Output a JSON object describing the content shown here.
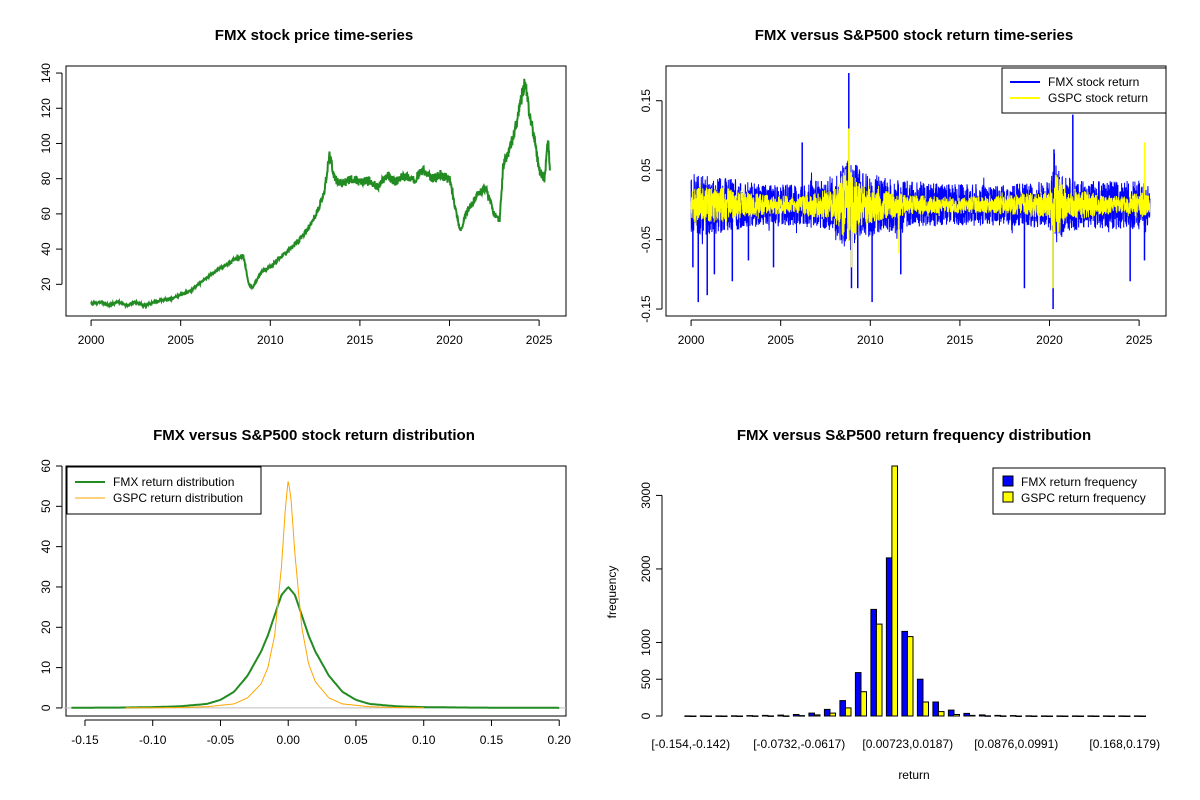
{
  "chart_data": [
    {
      "type": "line",
      "title": "FMX stock price time-series",
      "xlabel": "",
      "ylabel": "",
      "xlim": [
        1998.6,
        2026.5
      ],
      "ylim": [
        2,
        144
      ],
      "x_ticks": [
        2000,
        2005,
        2010,
        2015,
        2020,
        2025
      ],
      "x_tick_labels": [
        "2000",
        "2005",
        "2010",
        "2015",
        "2020",
        "2025"
      ],
      "y_ticks": [
        20,
        40,
        60,
        80,
        100,
        120,
        140
      ],
      "y_tick_labels": [
        "20",
        "40",
        "60",
        "80",
        "100",
        "120",
        "140"
      ],
      "grid": false,
      "colors": {
        "line": "#228B22"
      },
      "series": [
        {
          "x": [
            2000.0,
            2000.5,
            2001.0,
            2001.5,
            2002.0,
            2002.5,
            2003.0,
            2003.5,
            2004.0,
            2004.5,
            2005.0,
            2005.5,
            2006.0,
            2006.5,
            2007.0,
            2007.5,
            2008.0,
            2008.5,
            2008.8,
            2009.0,
            2009.5,
            2010.0,
            2010.5,
            2011.0,
            2011.5,
            2012.0,
            2012.5,
            2013.0,
            2013.3,
            2013.6,
            2014.0,
            2014.5,
            2015.0,
            2015.5,
            2016.0,
            2016.5,
            2017.0,
            2017.5,
            2018.0,
            2018.5,
            2019.0,
            2019.5,
            2020.0,
            2020.3,
            2020.6,
            2021.0,
            2021.5,
            2022.0,
            2022.5,
            2022.8,
            2023.0,
            2023.3,
            2023.6,
            2024.0,
            2024.2,
            2024.5,
            2024.8,
            2025.0,
            2025.3,
            2025.5,
            2025.6
          ],
          "y": [
            9,
            10,
            8,
            10,
            8,
            10,
            8,
            10,
            11,
            12,
            14,
            16,
            20,
            24,
            28,
            31,
            34,
            36,
            20,
            18,
            27,
            30,
            35,
            39,
            44,
            50,
            58,
            72,
            93,
            80,
            77,
            80,
            78,
            79,
            75,
            82,
            78,
            82,
            79,
            85,
            80,
            82,
            80,
            65,
            50,
            62,
            70,
            75,
            60,
            56,
            88,
            95,
            105,
            125,
            135,
            115,
            100,
            85,
            80,
            103,
            85
          ]
        }
      ]
    },
    {
      "type": "line",
      "title": "FMX versus S&P500 stock return time-series",
      "xlabel": "",
      "ylabel": "",
      "xlim": [
        1998.6,
        2026.5
      ],
      "ylim": [
        -0.16,
        0.2
      ],
      "x_ticks": [
        2000,
        2005,
        2010,
        2015,
        2020,
        2025
      ],
      "x_tick_labels": [
        "2000",
        "2005",
        "2010",
        "2015",
        "2020",
        "2025"
      ],
      "y_ticks": [
        -0.15,
        -0.05,
        0.05,
        0.15
      ],
      "y_tick_labels": [
        "-0.15",
        "-0.05",
        "0.05",
        "0.15"
      ],
      "grid": false,
      "legend": {
        "position": "top-right",
        "entries": [
          "FMX stock return",
          "GSPC stock return"
        ]
      },
      "series": [
        {
          "name": "FMX stock return",
          "color": "#0000FF",
          "band_x": [
            2000,
            2002,
            2004,
            2006,
            2008,
            2008.8,
            2009.5,
            2011,
            2012,
            2014,
            2016,
            2018,
            2020,
            2020.3,
            2021,
            2022,
            2023,
            2024,
            2025,
            2025.6
          ],
          "band_amplitude": [
            0.045,
            0.04,
            0.03,
            0.03,
            0.04,
            0.07,
            0.05,
            0.04,
            0.035,
            0.03,
            0.03,
            0.03,
            0.035,
            0.06,
            0.04,
            0.035,
            0.035,
            0.035,
            0.035,
            0.03
          ],
          "spikes_x": [
            2000.1,
            2000.4,
            2000.9,
            2001.3,
            2002.3,
            2003.2,
            2004.6,
            2006.2,
            2008.8,
            2008.95,
            2009.3,
            2010.1,
            2011.7,
            2018.6,
            2020.2,
            2020.25,
            2021.3,
            2024.5,
            2025.3
          ],
          "spikes_y": [
            -0.09,
            -0.14,
            -0.13,
            -0.1,
            -0.11,
            -0.08,
            -0.09,
            0.09,
            0.19,
            -0.12,
            -0.12,
            -0.14,
            -0.1,
            -0.12,
            -0.15,
            0.08,
            0.13,
            -0.11,
            -0.08
          ]
        },
        {
          "name": "GSPC stock return",
          "color": "#FFFF00",
          "band_x": [
            2000,
            2002,
            2004,
            2006,
            2008,
            2008.8,
            2009.5,
            2011,
            2012,
            2014,
            2016,
            2018,
            2020,
            2020.3,
            2021,
            2022,
            2023,
            2024,
            2025,
            2025.6
          ],
          "band_amplitude": [
            0.025,
            0.025,
            0.015,
            0.012,
            0.025,
            0.06,
            0.03,
            0.02,
            0.015,
            0.012,
            0.012,
            0.015,
            0.02,
            0.05,
            0.018,
            0.02,
            0.015,
            0.012,
            0.02,
            0.012
          ],
          "spikes_x": [
            2008.8,
            2008.95,
            2011.6,
            2020.2,
            2025.3
          ],
          "spikes_y": [
            0.11,
            -0.09,
            -0.07,
            -0.12,
            0.09
          ]
        }
      ]
    },
    {
      "type": "line",
      "title": "FMX versus S&P500 stock return distribution",
      "xlabel": "",
      "ylabel": "",
      "xlim": [
        -0.164,
        0.205
      ],
      "ylim": [
        -2,
        60
      ],
      "x_ticks": [
        -0.15,
        -0.1,
        -0.05,
        0.0,
        0.05,
        0.1,
        0.15,
        0.2
      ],
      "x_tick_labels": [
        "-0.15",
        "-0.10",
        "-0.05",
        "0.00",
        "0.05",
        "0.10",
        "0.15",
        "0.20"
      ],
      "y_ticks": [
        0,
        10,
        20,
        30,
        40,
        50,
        60
      ],
      "y_tick_labels": [
        "0",
        "10",
        "20",
        "30",
        "40",
        "50",
        "60"
      ],
      "grid": false,
      "baseline_color": "#BEBEBE",
      "legend": {
        "position": "top-left",
        "entries": [
          "FMX return distribution",
          "GSPC return distribution"
        ]
      },
      "series": [
        {
          "name": "FMX return distribution",
          "color": "#228B22",
          "x": [
            -0.16,
            -0.12,
            -0.1,
            -0.08,
            -0.06,
            -0.05,
            -0.04,
            -0.03,
            -0.02,
            -0.015,
            -0.01,
            -0.005,
            0.0,
            0.005,
            0.01,
            0.015,
            0.02,
            0.03,
            0.04,
            0.05,
            0.06,
            0.08,
            0.1,
            0.13,
            0.16,
            0.2
          ],
          "y": [
            0.05,
            0.1,
            0.2,
            0.4,
            1.0,
            2.0,
            4.0,
            8.0,
            14.0,
            18.0,
            23.0,
            28.0,
            30.0,
            28.0,
            23.0,
            18.0,
            14.0,
            8.0,
            4.0,
            2.0,
            1.0,
            0.4,
            0.2,
            0.1,
            0.05,
            0.02
          ]
        },
        {
          "name": "GSPC return distribution",
          "color": "#FFA500",
          "x": [
            -0.12,
            -0.1,
            -0.08,
            -0.06,
            -0.04,
            -0.03,
            -0.02,
            -0.015,
            -0.01,
            -0.005,
            -0.002,
            0.0,
            0.002,
            0.005,
            0.01,
            0.015,
            0.02,
            0.03,
            0.04,
            0.06,
            0.08,
            0.1
          ],
          "y": [
            0.02,
            0.05,
            0.1,
            0.3,
            1.0,
            2.5,
            6.0,
            10.0,
            18.0,
            35.0,
            50.0,
            56.5,
            52.0,
            38.0,
            20.0,
            11.0,
            6.5,
            2.5,
            1.0,
            0.3,
            0.1,
            0.03
          ]
        }
      ]
    },
    {
      "type": "bar",
      "title": "FMX versus S&P500 return frequency distribution",
      "xlabel": "return",
      "ylabel": "frequency",
      "ylim": [
        0,
        3400
      ],
      "y_ticks": [
        0,
        500,
        1000,
        2000,
        3000
      ],
      "y_tick_labels": [
        "0",
        "500",
        "1000",
        "2000",
        "3000"
      ],
      "grid": false,
      "legend": {
        "position": "top-right",
        "entries": [
          "FMX return frequency",
          "GSPC return frequency"
        ]
      },
      "x_tick_labels": [
        {
          "text": "[-0.154,-0.142)",
          "index": 0
        },
        {
          "text": "[-0.0732,-0.0617)",
          "index": 7
        },
        {
          "text": "[0.00723,0.0187)",
          "index": 14
        },
        {
          "text": "[0.0876,0.0991)",
          "index": 21
        },
        {
          "text": "[0.168,0.179)",
          "index": 28
        }
      ],
      "bin_count": 30,
      "series": [
        {
          "name": "FMX return frequency",
          "color": "#0000FF",
          "values": [
            2,
            1,
            2,
            3,
            5,
            8,
            12,
            20,
            40,
            90,
            210,
            590,
            1450,
            2150,
            1150,
            500,
            190,
            80,
            35,
            15,
            8,
            5,
            3,
            2,
            2,
            1,
            1,
            1,
            1,
            1
          ]
        },
        {
          "name": "GSPC return frequency",
          "color": "#FFFF00",
          "values": [
            0,
            0,
            0,
            0,
            1,
            1,
            2,
            5,
            15,
            40,
            110,
            330,
            1250,
            3400,
            1080,
            190,
            60,
            20,
            8,
            3,
            1,
            0,
            0,
            0,
            0,
            0,
            0,
            0,
            0,
            0
          ]
        }
      ]
    }
  ]
}
